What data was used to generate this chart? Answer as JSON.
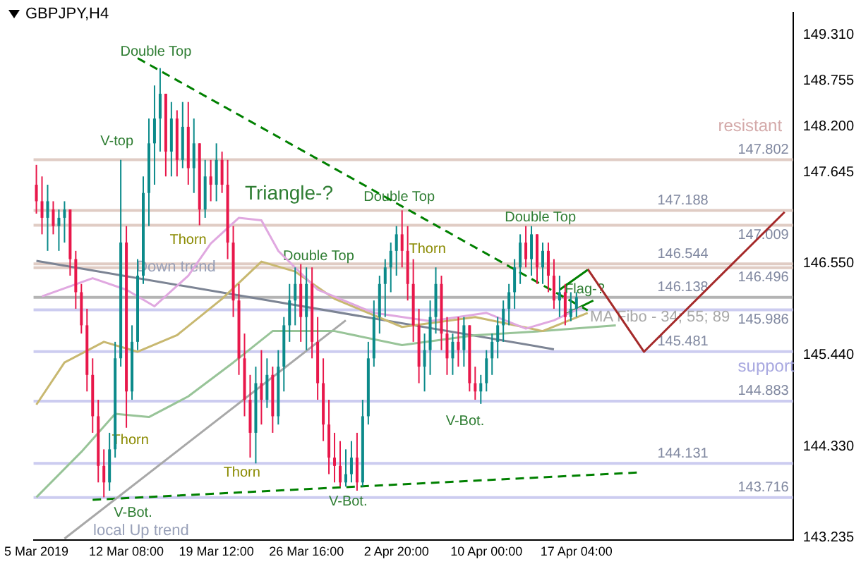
{
  "chart_data": {
    "type": "candlestick",
    "title": "GBPJPY,H4",
    "categories": [
      "5 Mar 2019",
      null,
      null,
      null,
      null,
      null,
      null,
      null,
      null,
      null,
      null,
      null,
      null,
      null,
      null,
      null,
      "12 Mar 08:00",
      null,
      null,
      null,
      null,
      null,
      null,
      null,
      null,
      null,
      null,
      null,
      null,
      null,
      null,
      null,
      "19 Mar 12:00",
      null,
      null,
      null,
      null,
      null,
      null,
      null,
      null,
      null,
      null,
      null,
      null,
      null,
      null,
      null,
      "26 Mar 16:00",
      null,
      null,
      null,
      null,
      null,
      null,
      null,
      null,
      null,
      null,
      null,
      null,
      null,
      null,
      null,
      "2 Apr 20:00",
      null,
      null,
      null,
      null,
      null,
      null,
      null,
      null,
      null,
      null,
      null,
      null,
      null,
      null,
      null,
      "10 Apr 00:00",
      null,
      null,
      null,
      null,
      null,
      null,
      null,
      null,
      null,
      null,
      null,
      null,
      null,
      null,
      null,
      "17 Apr 04:00",
      null,
      null,
      null,
      null,
      null,
      null,
      null,
      null,
      null,
      null,
      null,
      null,
      null,
      null,
      null,
      null,
      null,
      null,
      null,
      null,
      null,
      null,
      null,
      null,
      null,
      null,
      null,
      null,
      null,
      null,
      null,
      null,
      null,
      null,
      null,
      null,
      null,
      null
    ],
    "ohlc": [
      [
        147.5,
        147.74,
        147.15,
        147.3
      ],
      [
        147.3,
        147.6,
        146.9,
        147.1
      ],
      [
        147.1,
        147.5,
        146.7,
        147.3
      ],
      [
        147.2,
        147.3,
        146.9,
        147.0
      ],
      [
        147.0,
        147.2,
        146.7,
        147.1
      ],
      [
        147.1,
        147.3,
        146.8,
        147.2
      ],
      [
        147.2,
        147.2,
        146.4,
        146.6
      ],
      [
        146.6,
        146.7,
        146.0,
        146.2
      ],
      [
        146.2,
        146.3,
        145.7,
        145.8
      ],
      [
        145.8,
        146.0,
        145.0,
        145.2
      ],
      [
        145.2,
        145.4,
        144.5,
        144.7
      ],
      [
        144.7,
        144.9,
        143.9,
        144.1
      ],
      [
        144.1,
        144.3,
        143.72,
        143.9
      ],
      [
        143.9,
        144.5,
        143.8,
        144.3
      ],
      [
        144.3,
        145.6,
        144.2,
        145.4
      ],
      [
        145.4,
        147.8,
        145.3,
        146.8
      ],
      [
        146.8,
        147.0,
        144.56,
        145.0
      ],
      [
        145.0,
        145.8,
        144.9,
        145.6
      ],
      [
        145.6,
        146.6,
        145.5,
        146.4
      ],
      [
        146.4,
        147.6,
        146.3,
        147.4
      ],
      [
        147.4,
        148.3,
        147.0,
        148.0
      ],
      [
        148.0,
        148.7,
        147.5,
        148.3
      ],
      [
        148.3,
        148.91,
        147.9,
        148.6
      ],
      [
        148.6,
        148.6,
        147.6,
        147.9
      ],
      [
        147.9,
        148.5,
        147.6,
        148.3
      ],
      [
        148.3,
        148.4,
        147.6,
        147.8
      ],
      [
        147.8,
        148.5,
        147.7,
        148.2
      ],
      [
        148.2,
        148.5,
        147.5,
        147.7
      ],
      [
        147.7,
        148.3,
        147.4,
        148.0
      ],
      [
        148.0,
        148.0,
        147.01,
        147.2
      ],
      [
        147.2,
        147.8,
        147.1,
        147.6
      ],
      [
        147.6,
        147.8,
        147.3,
        147.5
      ],
      [
        147.5,
        148.0,
        147.3,
        147.8
      ],
      [
        147.8,
        147.9,
        147.4,
        147.5
      ],
      [
        147.5,
        147.8,
        146.6,
        146.8
      ],
      [
        146.8,
        147.0,
        145.9,
        146.1
      ],
      [
        146.1,
        146.3,
        145.2,
        145.4
      ],
      [
        145.4,
        145.7,
        144.7,
        144.9
      ],
      [
        144.9,
        145.2,
        144.2,
        144.5
      ],
      [
        144.5,
        145.3,
        144.13,
        145.1
      ],
      [
        145.1,
        145.5,
        144.6,
        144.9
      ],
      [
        144.9,
        145.4,
        144.8,
        145.2
      ],
      [
        145.2,
        145.3,
        144.5,
        144.7
      ],
      [
        144.7,
        145.5,
        144.6,
        145.3
      ],
      [
        145.3,
        145.9,
        145.0,
        145.8
      ],
      [
        145.8,
        146.3,
        145.6,
        146.1
      ],
      [
        146.1,
        146.5,
        145.8,
        146.3
      ],
      [
        146.3,
        146.54,
        145.6,
        145.9
      ],
      [
        145.9,
        146.5,
        145.5,
        146.3
      ],
      [
        146.3,
        146.5,
        145.4,
        145.6
      ],
      [
        145.6,
        145.9,
        144.9,
        145.1
      ],
      [
        145.1,
        145.4,
        144.4,
        144.6
      ],
      [
        144.6,
        144.9,
        144.0,
        144.2
      ],
      [
        144.2,
        144.5,
        143.9,
        144.1
      ],
      [
        144.1,
        144.4,
        143.85,
        143.9
      ],
      [
        143.9,
        144.3,
        143.85,
        144.0
      ],
      [
        144.0,
        144.4,
        143.9,
        144.2
      ],
      [
        144.2,
        144.5,
        143.8,
        143.9
      ],
      [
        143.9,
        144.9,
        143.85,
        144.7
      ],
      [
        144.7,
        145.6,
        144.6,
        145.4
      ],
      [
        145.4,
        146.1,
        145.3,
        145.9
      ],
      [
        145.9,
        146.4,
        145.7,
        146.3
      ],
      [
        146.3,
        146.6,
        145.9,
        146.5
      ],
      [
        146.5,
        146.8,
        146.2,
        146.7
      ],
      [
        146.7,
        147.0,
        146.4,
        146.9
      ],
      [
        146.9,
        147.19,
        146.5,
        146.7
      ],
      [
        146.7,
        147.0,
        146.1,
        146.3
      ],
      [
        146.3,
        146.6,
        145.6,
        145.8
      ],
      [
        145.8,
        146.0,
        145.1,
        145.3
      ],
      [
        145.3,
        145.7,
        145.0,
        145.5
      ],
      [
        145.5,
        146.1,
        145.2,
        145.9
      ],
      [
        145.9,
        146.5,
        145.7,
        146.3
      ],
      [
        146.3,
        146.4,
        145.5,
        145.7
      ],
      [
        145.7,
        145.9,
        145.2,
        145.4
      ],
      [
        145.4,
        145.7,
        145.2,
        145.6
      ],
      [
        145.6,
        145.9,
        145.3,
        145.5
      ],
      [
        145.5,
        145.9,
        145.3,
        145.8
      ],
      [
        145.8,
        145.8,
        145.0,
        145.1
      ],
      [
        145.1,
        145.3,
        144.9,
        145.0
      ],
      [
        145.0,
        145.2,
        144.85,
        145.1
      ],
      [
        145.1,
        145.5,
        145.0,
        145.4
      ],
      [
        145.4,
        145.7,
        145.2,
        145.6
      ],
      [
        145.6,
        145.9,
        145.4,
        145.8
      ],
      [
        145.8,
        146.1,
        145.6,
        146.0
      ],
      [
        146.0,
        146.3,
        145.8,
        146.2
      ],
      [
        146.2,
        146.6,
        146.0,
        146.5
      ],
      [
        146.5,
        146.9,
        146.3,
        146.8
      ],
      [
        146.8,
        147.0,
        146.5,
        146.6
      ],
      [
        146.6,
        147.0,
        146.4,
        146.9
      ],
      [
        146.9,
        146.9,
        146.3,
        146.5
      ],
      [
        146.5,
        146.8,
        146.3,
        146.7
      ],
      [
        146.7,
        146.8,
        146.2,
        146.4
      ],
      [
        146.4,
        146.6,
        146.0,
        146.1
      ],
      [
        146.1,
        146.4,
        145.9,
        146.2
      ],
      [
        146.2,
        146.3,
        145.8,
        145.9
      ],
      [
        145.9,
        146.2,
        145.85,
        146.0
      ],
      [
        146.0,
        146.2,
        145.9,
        146.14
      ],
      null,
      null,
      null,
      null,
      null,
      null,
      null,
      null,
      null,
      null,
      null,
      null,
      null,
      null,
      null,
      null,
      null,
      null,
      null,
      null,
      null,
      null,
      null,
      null,
      null,
      null,
      null,
      null,
      null,
      null,
      null,
      null,
      null,
      null,
      null,
      null,
      null,
      null
    ],
    "series": [
      {
        "type": "line",
        "color": "#e0a8e0",
        "values": [
          null,
          146.15,
          null,
          null,
          null,
          null,
          null,
          null,
          null,
          null,
          146.37,
          null,
          null,
          null,
          null,
          null,
          146.23,
          null,
          null,
          null,
          null,
          146.03,
          null,
          null,
          null,
          null,
          null,
          146.4,
          null,
          null,
          null,
          146.79,
          null,
          null,
          null,
          null,
          147.1,
          null,
          null,
          null,
          147.07,
          null,
          null,
          146.7,
          null,
          null,
          null,
          null,
          null,
          null,
          146.23,
          null,
          null,
          null,
          null,
          null,
          null,
          null,
          null,
          null,
          145.95,
          null,
          null,
          null,
          null,
          null,
          null,
          null,
          null,
          null,
          145.85,
          null,
          null,
          null,
          null,
          null,
          null,
          null,
          null,
          null,
          145.95,
          null,
          null,
          null,
          null,
          null,
          null,
          145.76,
          null,
          null,
          null,
          null,
          145.86,
          null,
          null,
          null,
          null,
          146.02,
          null,
          null,
          null,
          null,
          null,
          null,
          null,
          null,
          null,
          null,
          null,
          null,
          null,
          null,
          null,
          null,
          null,
          null,
          null,
          null,
          null,
          null,
          null,
          null,
          null,
          null,
          null,
          null,
          null,
          null,
          null,
          null,
          null,
          null,
          null,
          null,
          null
        ]
      },
      {
        "type": "line",
        "color": "#c8b870",
        "values": [
          144.84,
          null,
          null,
          null,
          null,
          145.35,
          null,
          null,
          null,
          null,
          null,
          null,
          145.6,
          null,
          null,
          null,
          null,
          null,
          145.48,
          null,
          null,
          null,
          null,
          null,
          null,
          145.68,
          null,
          null,
          null,
          null,
          null,
          null,
          null,
          146.12,
          null,
          null,
          null,
          null,
          null,
          null,
          146.57,
          null,
          null,
          null,
          null,
          null,
          146.45,
          null,
          null,
          null,
          null,
          null,
          null,
          146.12,
          null,
          null,
          null,
          null,
          null,
          null,
          null,
          null,
          null,
          null,
          null,
          145.78,
          null,
          null,
          null,
          null,
          null,
          null,
          null,
          null,
          null,
          null,
          null,
          null,
          145.9,
          null,
          null,
          null,
          null,
          null,
          null,
          null,
          null,
          null,
          null,
          null,
          145.73,
          null,
          null,
          null,
          null,
          null,
          null,
          null,
          145.95,
          null,
          null,
          null,
          null,
          null,
          null,
          null,
          null,
          null,
          null,
          null,
          null,
          null,
          null,
          null,
          null,
          null,
          null,
          null,
          null,
          null,
          null,
          null,
          null,
          null,
          null,
          null,
          null,
          null,
          null,
          null,
          null,
          null,
          null,
          null,
          null
        ]
      },
      {
        "type": "line",
        "color": "#98c498",
        "values": [
          143.72,
          null,
          null,
          null,
          null,
          null,
          null,
          null,
          144.27,
          null,
          null,
          null,
          null,
          null,
          144.73,
          null,
          null,
          null,
          null,
          null,
          144.69,
          null,
          null,
          null,
          null,
          null,
          null,
          144.94,
          null,
          null,
          null,
          null,
          null,
          null,
          null,
          145.35,
          null,
          null,
          null,
          null,
          null,
          null,
          145.73,
          null,
          null,
          null,
          null,
          null,
          null,
          null,
          null,
          null,
          null,
          145.73,
          null,
          null,
          null,
          null,
          null,
          null,
          null,
          null,
          null,
          null,
          null,
          145.56,
          null,
          null,
          null,
          null,
          null,
          null,
          null,
          null,
          null,
          null,
          null,
          null,
          145.68,
          null,
          null,
          null,
          null,
          null,
          null,
          null,
          null,
          null,
          null,
          null,
          145.73,
          null,
          null,
          null,
          null,
          null,
          null,
          null,
          null,
          null,
          null,
          null,
          null,
          145.8,
          null,
          null,
          null,
          null,
          null,
          null,
          null,
          null,
          null,
          null,
          null,
          null,
          null,
          null,
          null,
          null,
          null,
          null,
          null,
          null,
          null,
          null,
          null,
          null,
          null,
          null,
          null,
          null,
          null,
          null,
          null
        ]
      },
      {
        "type": "line",
        "color": "#7c8494",
        "values": [
          146.58,
          null,
          null,
          null,
          null,
          null,
          null,
          null,
          null,
          null,
          null,
          null,
          null,
          null,
          null,
          null,
          null,
          null,
          null,
          null,
          null,
          null,
          null,
          null,
          null,
          null,
          null,
          null,
          null,
          null,
          null,
          null,
          null,
          null,
          null,
          null,
          null,
          null,
          null,
          null,
          null,
          null,
          null,
          null,
          null,
          null,
          null,
          null,
          null,
          null,
          null,
          null,
          null,
          null,
          null,
          null,
          null,
          null,
          null,
          null,
          null,
          null,
          null,
          null,
          null,
          null,
          null,
          null,
          null,
          null,
          null,
          null,
          null,
          null,
          null,
          null,
          null,
          null,
          null,
          null,
          null,
          null,
          null,
          null,
          null,
          null,
          null,
          null,
          null,
          null,
          null,
          null,
          145.51,
          null,
          null,
          null,
          null,
          null,
          null,
          null,
          null,
          null,
          null,
          null,
          null,
          null,
          null,
          null,
          null,
          null,
          null,
          null,
          null,
          null,
          null,
          null,
          null,
          null,
          null,
          null,
          null,
          null,
          null,
          null,
          null,
          null,
          null,
          null,
          null,
          null,
          null,
          null,
          null,
          null,
          null
        ]
      },
      {
        "type": "line",
        "color": "#a8a8a8",
        "values": [
          null,
          null,
          null,
          null,
          null,
          143.22,
          null,
          null,
          null,
          null,
          null,
          null,
          null,
          null,
          null,
          null,
          null,
          null,
          null,
          null,
          null,
          null,
          null,
          null,
          null,
          null,
          null,
          null,
          null,
          null,
          null,
          null,
          null,
          null,
          null,
          null,
          null,
          null,
          null,
          null,
          null,
          null,
          null,
          null,
          null,
          null,
          null,
          null,
          null,
          null,
          null,
          null,
          null,
          null,
          null,
          145.86,
          null,
          null,
          null,
          null,
          null,
          null,
          null,
          null,
          null,
          null,
          null,
          null,
          null,
          null,
          null,
          null,
          null,
          null,
          null,
          null,
          null,
          null,
          null,
          null,
          null,
          null,
          null,
          null,
          null,
          null,
          null,
          null,
          null,
          null,
          null,
          null,
          null,
          null,
          null,
          null,
          null,
          null,
          null,
          null,
          null,
          null,
          null,
          null,
          null,
          null,
          null,
          null,
          null,
          null,
          null,
          null,
          null,
          null,
          null,
          null,
          null,
          null,
          null,
          null,
          null,
          null,
          null,
          null,
          null,
          null,
          null,
          null,
          null,
          null,
          null,
          null,
          null,
          null,
          null
        ]
      },
      {
        "type": "line",
        "color": "#008000",
        "line_style": "dashed",
        "values": [
          null,
          null,
          null,
          null,
          null,
          null,
          null,
          null,
          null,
          null,
          null,
          null,
          null,
          null,
          null,
          null,
          null,
          null,
          149.03,
          null,
          null,
          null,
          null,
          null,
          null,
          null,
          null,
          null,
          null,
          null,
          null,
          null,
          null,
          null,
          null,
          null,
          null,
          null,
          null,
          null,
          null,
          null,
          null,
          null,
          null,
          null,
          null,
          null,
          null,
          null,
          null,
          null,
          null,
          null,
          null,
          null,
          null,
          null,
          null,
          null,
          null,
          null,
          null,
          null,
          null,
          null,
          null,
          null,
          null,
          null,
          null,
          null,
          null,
          null,
          null,
          null,
          null,
          null,
          null,
          null,
          null,
          null,
          null,
          null,
          null,
          null,
          null,
          null,
          null,
          null,
          null,
          null,
          null,
          null,
          null,
          null,
          null,
          null,
          145.98,
          null,
          null,
          null,
          null,
          null,
          null,
          null,
          null,
          null,
          null,
          null,
          null,
          null,
          null,
          null,
          null,
          null,
          null,
          null,
          null,
          null,
          null,
          null,
          null,
          null,
          null,
          null,
          null,
          null,
          null,
          null,
          null,
          null,
          null,
          null,
          null
        ]
      },
      {
        "type": "line",
        "color": "#008000",
        "line_style": "dashed",
        "values": [
          null,
          null,
          null,
          null,
          null,
          null,
          null,
          null,
          null,
          null,
          143.69,
          null,
          null,
          null,
          null,
          null,
          null,
          null,
          null,
          null,
          null,
          null,
          null,
          null,
          null,
          null,
          null,
          null,
          null,
          null,
          null,
          null,
          null,
          null,
          null,
          null,
          null,
          null,
          null,
          null,
          null,
          null,
          null,
          null,
          null,
          null,
          null,
          null,
          null,
          null,
          null,
          null,
          null,
          null,
          null,
          null,
          null,
          null,
          null,
          null,
          null,
          null,
          null,
          null,
          null,
          null,
          null,
          null,
          null,
          null,
          null,
          null,
          null,
          null,
          null,
          null,
          null,
          null,
          null,
          null,
          null,
          null,
          null,
          null,
          null,
          null,
          null,
          null,
          null,
          null,
          null,
          null,
          null,
          null,
          null,
          null,
          null,
          null,
          null,
          null,
          null,
          null,
          null,
          null,
          null,
          null,
          null,
          144.02,
          null,
          null,
          null,
          null,
          null,
          null,
          null,
          null,
          null,
          null,
          null,
          null,
          null,
          null,
          null,
          null,
          null,
          null,
          null,
          null,
          null,
          null,
          null,
          null,
          null,
          null,
          null
        ]
      },
      {
        "type": "line",
        "color": "#008000",
        "values": [
          null,
          null,
          null,
          null,
          null,
          null,
          null,
          null,
          null,
          null,
          null,
          null,
          null,
          null,
          null,
          null,
          null,
          null,
          null,
          null,
          null,
          null,
          null,
          null,
          null,
          null,
          null,
          null,
          null,
          null,
          null,
          null,
          null,
          null,
          null,
          null,
          null,
          null,
          null,
          null,
          null,
          null,
          null,
          null,
          null,
          null,
          null,
          null,
          null,
          null,
          null,
          null,
          null,
          null,
          null,
          null,
          null,
          null,
          null,
          null,
          null,
          null,
          null,
          null,
          null,
          null,
          null,
          null,
          null,
          null,
          null,
          null,
          null,
          null,
          null,
          null,
          null,
          null,
          null,
          null,
          null,
          null,
          null,
          null,
          null,
          null,
          null,
          null,
          null,
          null,
          null,
          null,
          null,
          146.23,
          null,
          null,
          null,
          null,
          146.47,
          null,
          null,
          null,
          null,
          null,
          null,
          null,
          null,
          null,
          null,
          null,
          null,
          null,
          null,
          null,
          null,
          null,
          null,
          null,
          null,
          null,
          null,
          null,
          null,
          null,
          null,
          null,
          null,
          null,
          null,
          null,
          null,
          null,
          null,
          null,
          null
        ]
      },
      {
        "type": "line",
        "color": "#008000",
        "values": [
          null,
          null,
          null,
          null,
          null,
          null,
          null,
          null,
          null,
          null,
          null,
          null,
          null,
          null,
          null,
          null,
          null,
          null,
          null,
          null,
          null,
          null,
          null,
          null,
          null,
          null,
          null,
          null,
          null,
          null,
          null,
          null,
          null,
          null,
          null,
          null,
          null,
          null,
          null,
          null,
          null,
          null,
          null,
          null,
          null,
          null,
          null,
          null,
          null,
          null,
          null,
          null,
          null,
          null,
          null,
          null,
          null,
          null,
          null,
          null,
          null,
          null,
          null,
          null,
          null,
          null,
          null,
          null,
          null,
          null,
          null,
          null,
          null,
          null,
          null,
          null,
          null,
          null,
          null,
          null,
          null,
          null,
          null,
          null,
          null,
          null,
          null,
          null,
          null,
          null,
          null,
          null,
          null,
          null,
          145.93,
          null,
          null,
          null,
          null,
          146.1,
          null,
          null,
          null,
          null,
          null,
          null,
          null,
          null,
          null,
          null,
          null,
          null,
          null,
          null,
          null,
          null,
          null,
          null,
          null,
          null,
          null,
          null,
          null,
          null,
          null,
          null,
          null,
          null,
          null,
          null,
          null,
          null,
          null,
          null,
          null
        ]
      },
      {
        "type": "line",
        "color": "#a52a2a",
        "values": [
          null,
          null,
          null,
          null,
          null,
          null,
          null,
          null,
          null,
          null,
          null,
          null,
          null,
          null,
          null,
          null,
          null,
          null,
          null,
          null,
          null,
          null,
          null,
          null,
          null,
          null,
          null,
          null,
          null,
          null,
          null,
          null,
          null,
          null,
          null,
          null,
          null,
          null,
          null,
          null,
          null,
          null,
          null,
          null,
          null,
          null,
          null,
          null,
          null,
          null,
          null,
          null,
          null,
          null,
          null,
          null,
          null,
          null,
          null,
          null,
          null,
          null,
          null,
          null,
          null,
          null,
          null,
          null,
          null,
          null,
          null,
          null,
          null,
          null,
          null,
          null,
          null,
          null,
          null,
          null,
          null,
          null,
          null,
          null,
          null,
          null,
          null,
          null,
          null,
          null,
          null,
          null,
          null,
          null,
          null,
          null,
          null,
          null,
          146.48,
          null,
          null,
          null,
          null,
          null,
          null,
          null,
          null,
          null,
          145.48,
          null,
          null,
          null,
          null,
          null,
          null,
          null,
          null,
          null,
          null,
          null,
          null,
          null,
          null,
          null,
          null,
          null,
          null,
          null,
          null,
          null,
          null,
          null,
          null,
          147.17,
          null
        ]
      }
    ],
    "ylim": [
      143.2,
      149.58
    ],
    "yticks": [
      {
        "value": 149.31,
        "label": "149.310"
      },
      148.755,
      {
        "value": 148.2,
        "label": "148.200"
      },
      147.645,
      {
        "value": 146.55,
        "label": "146.550"
      },
      {
        "value": 145.44,
        "label": "145.440"
      },
      {
        "value": 144.33,
        "label": "144.330"
      },
      143.235
    ],
    "ref_lines": [
      {
        "axis": "y",
        "value": 147.802,
        "label": "147.802",
        "color": "#e0ccc4"
      },
      {
        "axis": "y",
        "value": 147.188,
        "label": "147.188",
        "color": "#e0ccc4"
      },
      {
        "axis": "y",
        "value": 147.009,
        "label": "147.009",
        "color": "#e0ccc4"
      },
      {
        "axis": "y",
        "value": 146.544,
        "label": "146.544",
        "color": "#e0ccc4"
      },
      {
        "axis": "y",
        "value": 146.496,
        "label": "146.496",
        "color": "#e0ccc4"
      },
      {
        "axis": "y",
        "value": 146.138,
        "label": "146.138",
        "color": "#b4b4b4"
      },
      {
        "axis": "y",
        "value": 145.986,
        "label": "145.986",
        "color": "#ccccf0"
      },
      {
        "axis": "y",
        "value": 145.481,
        "label": "145.481",
        "color": "#ccccf0"
      },
      {
        "axis": "y",
        "value": 144.883,
        "label": "144.883",
        "color": "#ccccf0"
      },
      {
        "axis": "y",
        "value": 144.131,
        "label": "144.131",
        "color": "#ccccf0"
      },
      {
        "axis": "y",
        "value": 143.716,
        "label": "143.716",
        "color": "#ccccf0"
      }
    ],
    "annotations": [
      "Double Top",
      "V-top",
      "Thorn",
      "Thorn",
      "Thorn",
      "Triangle-?",
      "Double Top",
      "Double Top",
      "Thorn",
      "Double Top",
      "Down trend",
      "local Up trend",
      "V-Bot.",
      "V-Bot.",
      "V-Bot.",
      "Flag-?",
      "MA Fibo - 34; 55; 89",
      "resistant",
      "support"
    ],
    "grid": false,
    "legend": false,
    "marker": "none"
  }
}
